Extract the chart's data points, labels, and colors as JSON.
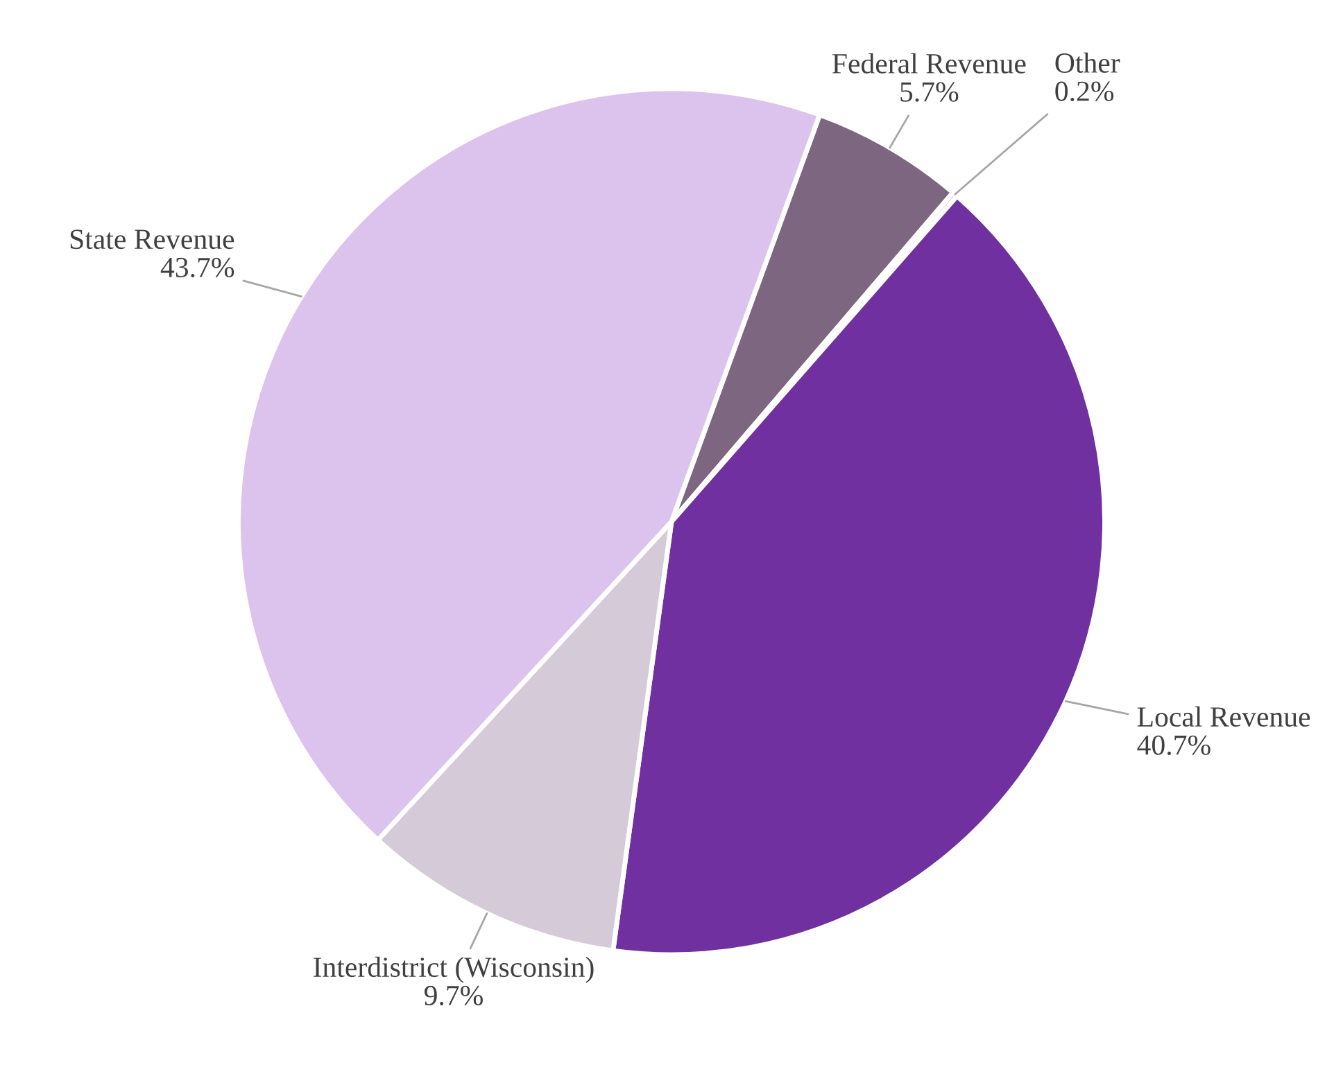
{
  "chart_data": {
    "type": "pie",
    "categories": [
      "Federal Revenue",
      "Other",
      "Local Revenue",
      "Interdistrict (Wisconsin)",
      "State Revenue"
    ],
    "values": [
      5.7,
      0.2,
      40.7,
      9.7,
      43.7
    ],
    "colors": [
      "#7d6680",
      "#c9b8d6",
      "#7030a0",
      "#d5cad8",
      "#dcc3ee"
    ],
    "value_labels": [
      "5.7%",
      "0.2%",
      "40.7%",
      "9.7%",
      "43.7%"
    ]
  }
}
